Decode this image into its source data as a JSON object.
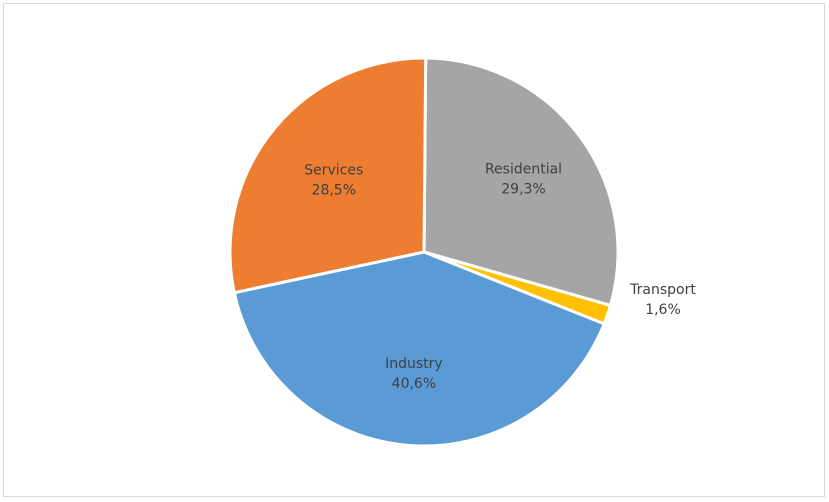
{
  "chart_data": {
    "type": "pie",
    "title": "",
    "legend": "none",
    "slices": [
      {
        "name": "Residential",
        "value": 29.3,
        "percent_label": "29,3%",
        "color": "#a5a5a5"
      },
      {
        "name": "Transport",
        "value": 1.6,
        "percent_label": "1,6%",
        "color": "#ffc000"
      },
      {
        "name": "Industry",
        "value": 40.6,
        "percent_label": "40,6%",
        "color": "#5b9bd5"
      },
      {
        "name": "Services",
        "value": 28.5,
        "percent_label": "28,5%",
        "color": "#ed7d31"
      }
    ]
  }
}
